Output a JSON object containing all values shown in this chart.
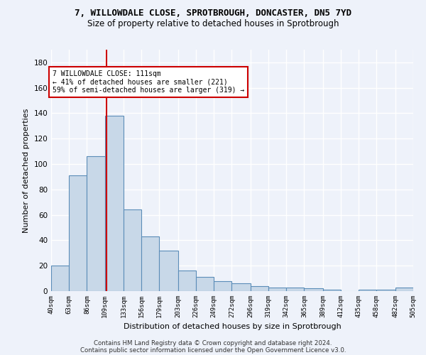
{
  "title_line1": "7, WILLOWDALE CLOSE, SPROTBROUGH, DONCASTER, DN5 7YD",
  "title_line2": "Size of property relative to detached houses in Sprotbrough",
  "xlabel": "Distribution of detached houses by size in Sprotbrough",
  "ylabel": "Number of detached properties",
  "footer_line1": "Contains HM Land Registry data © Crown copyright and database right 2024.",
  "footer_line2": "Contains public sector information licensed under the Open Government Licence v3.0.",
  "annotation_line1": "7 WILLOWDALE CLOSE: 111sqm",
  "annotation_line2": "← 41% of detached houses are smaller (221)",
  "annotation_line3": "59% of semi-detached houses are larger (319) →",
  "bar_color": "#c8d8e8",
  "bar_edge_color": "#5b8db8",
  "red_line_x": 111,
  "bin_edges": [
    40,
    63,
    86,
    109,
    133,
    156,
    179,
    203,
    226,
    249,
    272,
    296,
    319,
    342,
    365,
    389,
    412,
    435,
    458,
    482,
    505
  ],
  "bar_heights": [
    20,
    91,
    106,
    138,
    64,
    43,
    32,
    16,
    11,
    8,
    6,
    4,
    3,
    3,
    2,
    1,
    0,
    1,
    1,
    3
  ],
  "ylim": [
    0,
    190
  ],
  "yticks": [
    0,
    20,
    40,
    60,
    80,
    100,
    120,
    140,
    160,
    180
  ],
  "tick_labels": [
    "40sqm",
    "63sqm",
    "86sqm",
    "109sqm",
    "133sqm",
    "156sqm",
    "179sqm",
    "203sqm",
    "226sqm",
    "249sqm",
    "272sqm",
    "296sqm",
    "319sqm",
    "342sqm",
    "365sqm",
    "389sqm",
    "412sqm",
    "435sqm",
    "458sqm",
    "482sqm",
    "505sqm"
  ],
  "bg_color": "#eef2fa",
  "grid_color": "#ffffff",
  "annotation_box_color": "#ffffff",
  "annotation_box_edge": "#cc0000",
  "title1_fontsize": 9,
  "title2_fontsize": 8.5
}
